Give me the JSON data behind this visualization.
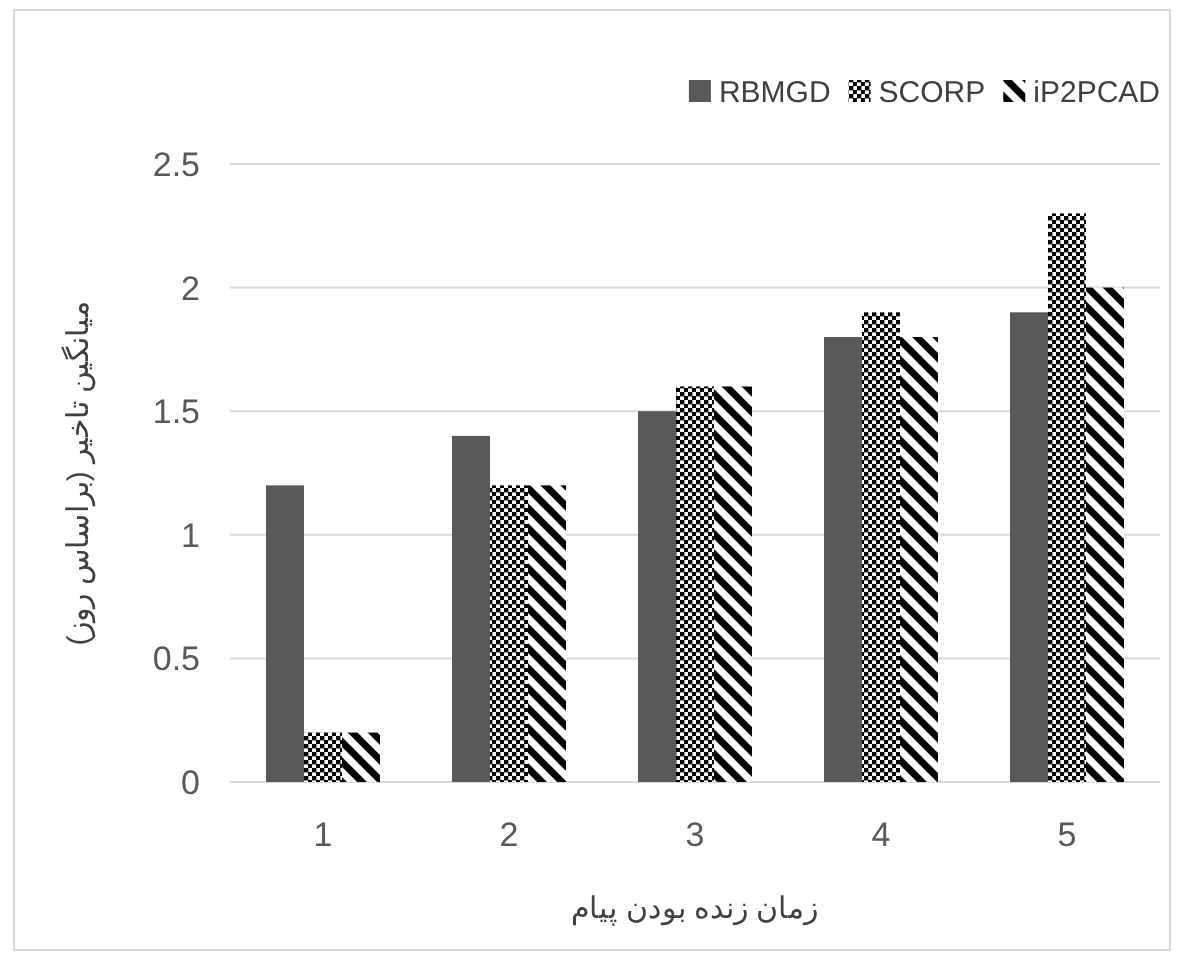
{
  "chart_data": {
    "type": "bar",
    "xlabel": "زمان زنده بودن پیام",
    "ylabel": "میانگین تاخیر (براساس روز)",
    "categories": [
      "1",
      "2",
      "3",
      "4",
      "5"
    ],
    "series": [
      {
        "name": "RBMGD",
        "color": "#595959",
        "values": [
          1.2,
          1.4,
          1.5,
          1.8,
          1.9
        ]
      },
      {
        "name": "SCORP",
        "color": "#000000",
        "values": [
          0.2,
          1.2,
          1.6,
          1.9,
          2.3
        ]
      },
      {
        "name": "iP2PCAD",
        "color": "#000000",
        "values": [
          0.2,
          1.2,
          1.6,
          1.8,
          2.0
        ]
      }
    ],
    "ylim": [
      0,
      2.5
    ],
    "yticks": [
      0,
      0.5,
      1,
      1.5,
      2,
      2.5
    ],
    "grid": "y",
    "legend": "top right"
  }
}
